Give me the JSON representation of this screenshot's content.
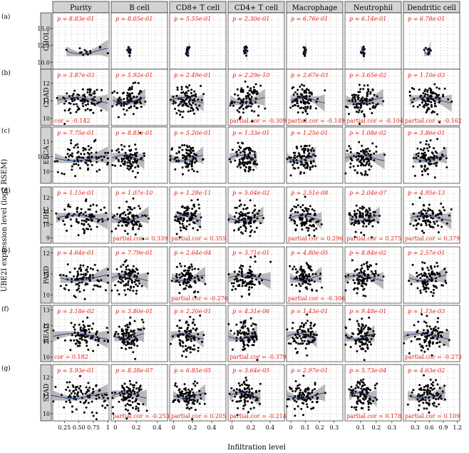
{
  "row_letters": [
    "(a)",
    "(b)",
    "(c)",
    "(d)",
    "(e)",
    "(f)",
    "(g)"
  ],
  "y_axis_title": "UBE2I expression level (log2 RSEM)",
  "x_axis_title": "Infiltration level",
  "colors": {
    "strip": "#d3d3d3",
    "point": "#000000",
    "ribbon": "#8c8c8c",
    "fit": "#1f3a93",
    "annotation": "#e3261c"
  },
  "chart_data": {
    "type": "scatter",
    "title": "",
    "columns": [
      {
        "name": "Purity",
        "ticks": [
          0.25,
          0.5,
          0.75,
          1
        ],
        "tick_labels": [
          "0.25",
          "0.50",
          "0.75",
          "1"
        ],
        "xlim": [
          0.05,
          1.02
        ]
      },
      {
        "name": "B cell",
        "ticks": [
          0,
          0.2,
          0.4
        ],
        "tick_labels": [
          "0",
          "0.2",
          "0.4"
        ],
        "xlim": [
          -0.04,
          0.5
        ]
      },
      {
        "name": "CD8+ T cell",
        "ticks": [
          0,
          0.2,
          0.4
        ],
        "tick_labels": [
          "0",
          "0.2",
          "0.4"
        ],
        "xlim": [
          -0.04,
          0.55
        ]
      },
      {
        "name": "CD4+ T cell",
        "ticks": [
          0,
          0.2,
          0.4
        ],
        "tick_labels": [
          "0",
          "0.2",
          "0.4"
        ],
        "xlim": [
          -0.04,
          0.55
        ]
      },
      {
        "name": "Macrophage",
        "ticks": [
          0,
          0.1,
          0.2,
          0.3
        ],
        "tick_labels": [
          "0",
          "0.1",
          "0.2",
          "0.3"
        ],
        "xlim": [
          -0.03,
          0.36
        ]
      },
      {
        "name": "Neutrophil",
        "ticks": [
          0.1,
          0.2,
          0.3
        ],
        "tick_labels": [
          "0.1",
          "0.2",
          "0.3"
        ],
        "xlim": [
          0.0,
          0.36
        ]
      },
      {
        "name": "Dendritic cell",
        "ticks": [
          0.3,
          0.6,
          0.9,
          1.2
        ],
        "tick_labels": [
          "0.3",
          "0.6",
          "0.9",
          "1.2"
        ],
        "xlim": [
          0.05,
          1.25
        ]
      }
    ],
    "rows": [
      {
        "name": "CHOL",
        "ticks": [
          10.0,
          12.5,
          15.0
        ],
        "tick_labels": [
          "10.0",
          "12.5",
          "15.0"
        ],
        "ylim": [
          9.0,
          17.3
        ],
        "p": [
          "8.83e-01",
          "8.05e-01",
          "5.55e-01",
          "2.30e-01",
          "6.76e-01",
          "6.14e-01",
          "6.78e-01"
        ],
        "cor": [
          "",
          "",
          "",
          "",
          "",
          "",
          ""
        ]
      },
      {
        "name": "COAD",
        "ticks": [
          10,
          11,
          12
        ],
        "tick_labels": [
          "10",
          "11",
          "12"
        ],
        "ylim": [
          9.6,
          12.8
        ],
        "p": [
          "3.87e-03",
          "5.92e-01",
          "2.49e-01",
          "2.29e-10",
          "2.67e-03",
          "3.65e-02",
          "1.10e-03"
        ],
        "cor": [
          "cor = -0.142",
          "",
          "",
          "partial.cor = -0.309",
          "partial.cor = -0.149",
          "partial.cor = -0.104",
          "partial.cor = -0.162"
        ]
      },
      {
        "name": "ESCA",
        "ticks": [
          10,
          10.5,
          11
        ],
        "tick_labels": [
          "10",
          "10.5",
          "11"
        ],
        "ylim": [
          9.6,
          11.5
        ],
        "p": [
          "7.75e-01",
          "8.81e-01",
          "5.20e-01",
          "1.33e-01",
          "1.25e-01",
          "1.08e-02",
          "3.86e-01"
        ],
        "cor": [
          "",
          "",
          "",
          "",
          "",
          "",
          ""
        ]
      },
      {
        "name": "LIHC",
        "ticks": [
          9,
          10,
          11,
          12
        ],
        "tick_labels": [
          "9",
          "10",
          "11",
          "12"
        ],
        "ylim": [
          8.6,
          12.8
        ],
        "p": [
          "1.15e-01",
          "1.07e-10",
          "1.28e-11",
          "5.04e-02",
          "2.51e-08",
          "2.04e-07",
          "4.95e-13"
        ],
        "cor": [
          "",
          "partial.cor = 0.339",
          "partial.cor = 0.355",
          "",
          "partial.cor = 0.296",
          "partial.cor = 0.275",
          "partial.cor = 0.379"
        ]
      },
      {
        "name": "PAAD",
        "ticks": [
          10,
          11,
          12
        ],
        "tick_labels": [
          "10",
          "11",
          "12"
        ],
        "ylim": [
          9.6,
          12.3
        ],
        "p": [
          "4.64e-01",
          "7.79e-01",
          "2.64e-04",
          "3.71e-01",
          "4.80e-05",
          "8.84e-02",
          "2.57e-01"
        ],
        "cor": [
          "",
          "",
          "partial.cor = -0.276",
          "",
          "partial.cor = -0.306",
          "",
          ""
        ]
      },
      {
        "name": "READ",
        "ticks": [
          10,
          11,
          12,
          13
        ],
        "tick_labels": [
          "10",
          "11",
          "12",
          "13"
        ],
        "ylim": [
          9.7,
          13.3
        ],
        "p": [
          "3.18e-02",
          "3.80e-01",
          "2.20e-01",
          "4.31e-06",
          "1.43e-01",
          "9.48e-01",
          "1.15e-03"
        ],
        "cor": [
          "cor = 0.182",
          "",
          "",
          "partial.cor = -0.379",
          "",
          "",
          "partial.cor = -0.273"
        ]
      },
      {
        "name": "STAD",
        "ticks": [
          10,
          11,
          12
        ],
        "tick_labels": [
          "10",
          "11",
          "12"
        ],
        "ylim": [
          9.6,
          12.7
        ],
        "p": [
          "5.93e-01",
          "8.38e-07",
          "6.85e-05",
          "3.64e-05",
          "2.97e-01",
          "5.73e-04",
          "4.63e-02"
        ],
        "cor": [
          "",
          "partial.cor = -0.253",
          "partial.cor = 0.205",
          "partial.cor = -0.214",
          "",
          "partial.cor = 0.178",
          "partial.cor = 0.109"
        ]
      }
    ]
  }
}
